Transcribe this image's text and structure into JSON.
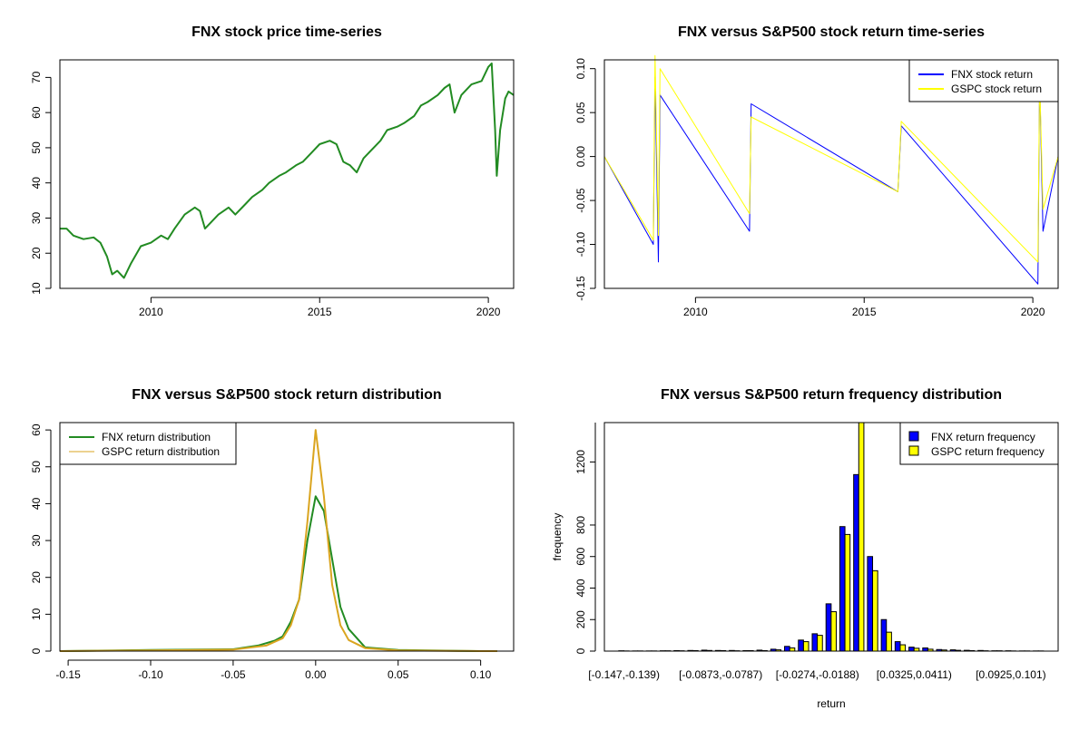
{
  "chart_data": [
    {
      "type": "line",
      "title": "FNX stock price time-series",
      "xlabel": "",
      "ylabel": "",
      "xlim": [
        2007.3,
        2020.75
      ],
      "ylim": [
        10,
        75
      ],
      "xticks": [
        2010,
        2015,
        2020
      ],
      "yticks": [
        10,
        20,
        30,
        40,
        50,
        60,
        70
      ],
      "series": [
        {
          "color": "#228b22",
          "x": [
            2007.3,
            2007.5,
            2007.7,
            2008.0,
            2008.3,
            2008.5,
            2008.7,
            2008.85,
            2009.0,
            2009.2,
            2009.4,
            2009.7,
            2010.0,
            2010.3,
            2010.5,
            2010.7,
            2011.0,
            2011.3,
            2011.45,
            2011.6,
            2011.8,
            2012.0,
            2012.3,
            2012.5,
            2012.8,
            2013.0,
            2013.3,
            2013.5,
            2013.8,
            2014.0,
            2014.3,
            2014.5,
            2014.8,
            2015.0,
            2015.3,
            2015.5,
            2015.7,
            2015.9,
            2016.1,
            2016.3,
            2016.5,
            2016.8,
            2017.0,
            2017.3,
            2017.5,
            2017.8,
            2018.0,
            2018.2,
            2018.5,
            2018.7,
            2018.85,
            2019.0,
            2019.2,
            2019.5,
            2019.8,
            2020.0,
            2020.1,
            2020.2,
            2020.25,
            2020.35,
            2020.5,
            2020.6,
            2020.75
          ],
          "y": [
            27,
            27,
            25,
            24,
            24.5,
            23,
            19,
            14,
            15,
            13,
            17,
            22,
            23,
            25,
            24,
            27,
            31,
            33,
            32,
            27,
            29,
            31,
            33,
            31,
            34,
            36,
            38,
            40,
            42,
            43,
            45,
            46,
            49,
            51,
            52,
            51,
            46,
            45,
            43,
            47,
            49,
            52,
            55,
            56,
            57,
            59,
            62,
            63,
            65,
            67,
            68,
            60,
            65,
            68,
            69,
            73,
            74,
            55,
            42,
            55,
            64,
            66,
            65
          ]
        }
      ]
    },
    {
      "type": "line",
      "title": "FNX versus S&P500 stock return time-series",
      "xlabel": "",
      "ylabel": "",
      "xlim": [
        2007.3,
        2020.75
      ],
      "ylim": [
        -0.15,
        0.11
      ],
      "xticks": [
        2010,
        2015,
        2020
      ],
      "yticks": [
        -0.15,
        -0.1,
        -0.05,
        0.0,
        0.05,
        0.1
      ],
      "legend_position": "top-right",
      "series": [
        {
          "name": "FNX stock return",
          "color": "#0000ff",
          "x": [
            2007.3,
            2008.75,
            2008.8,
            2008.9,
            2008.95,
            2011.6,
            2011.65,
            2016.0,
            2016.1,
            2020.15,
            2020.2,
            2020.3,
            2020.75
          ],
          "y": [
            0.0,
            -0.1,
            0.09,
            -0.12,
            0.07,
            -0.085,
            0.06,
            -0.04,
            0.035,
            -0.145,
            0.09,
            -0.085,
            0.0
          ]
        },
        {
          "name": "GSPC stock return",
          "color": "#ffff00",
          "x": [
            2007.3,
            2008.75,
            2008.8,
            2008.9,
            2008.95,
            2011.6,
            2011.65,
            2016.0,
            2016.1,
            2020.15,
            2020.2,
            2020.3,
            2020.75
          ],
          "y": [
            0.0,
            -0.095,
            0.115,
            -0.09,
            0.1,
            -0.065,
            0.045,
            -0.04,
            0.04,
            -0.12,
            0.09,
            -0.06,
            0.0
          ]
        }
      ]
    },
    {
      "type": "line",
      "title": "FNX versus S&P500 stock return distribution",
      "xlabel": "",
      "ylabel": "",
      "xlim": [
        -0.155,
        0.12
      ],
      "ylim": [
        0,
        62
      ],
      "xticks": [
        -0.15,
        -0.1,
        -0.05,
        0.0,
        0.05,
        0.1
      ],
      "yticks": [
        0,
        10,
        20,
        30,
        40,
        50,
        60
      ],
      "legend_position": "top-left",
      "series": [
        {
          "name": "FNX return distribution",
          "color": "#228b22",
          "x": [
            -0.155,
            -0.1,
            -0.05,
            -0.035,
            -0.025,
            -0.02,
            -0.015,
            -0.01,
            -0.005,
            0.0,
            0.005,
            0.01,
            0.015,
            0.02,
            0.03,
            0.05,
            0.1,
            0.11
          ],
          "y": [
            0,
            0.3,
            0.5,
            1.5,
            2.8,
            4,
            8,
            14,
            30,
            42,
            38,
            25,
            12,
            6,
            1,
            0.3,
            0,
            0
          ]
        },
        {
          "name": "GSPC return distribution",
          "color": "#daa520",
          "x": [
            -0.155,
            -0.1,
            -0.05,
            -0.03,
            -0.02,
            -0.015,
            -0.01,
            -0.005,
            0.0,
            0.005,
            0.01,
            0.015,
            0.02,
            0.03,
            0.05,
            0.1,
            0.11
          ],
          "y": [
            0,
            0.2,
            0.4,
            1.5,
            3.5,
            7,
            14,
            35,
            60,
            42,
            18,
            7,
            3,
            0.8,
            0.2,
            0,
            0
          ]
        }
      ]
    },
    {
      "type": "bar",
      "title": "FNX versus S&P500 return frequency distribution",
      "xlabel": "return",
      "ylabel": "frequency",
      "ylim": [
        0,
        1450
      ],
      "yticks": [
        0,
        200,
        400,
        600,
        800,
        1200
      ],
      "legend_position": "top-right",
      "tick_labels": [
        "[-0.147,-0.139)",
        "[-0.0873,-0.0787)",
        "[-0.0274,-0.0188)",
        "[0.0325,0.0411)",
        "[0.0925,0.101)"
      ],
      "tick_label_bins": [
        0,
        7,
        14,
        21,
        28
      ],
      "categories": [
        "b1",
        "b2",
        "b3",
        "b4",
        "b5",
        "b6",
        "b7",
        "b8",
        "b9",
        "b10",
        "b11",
        "b12",
        "b13",
        "b14",
        "b15",
        "b16",
        "b17",
        "b18",
        "b19",
        "b20",
        "b21",
        "b22",
        "b23",
        "b24",
        "b25",
        "b26",
        "b27",
        "b28",
        "b29",
        "b30",
        "b31"
      ],
      "series": [
        {
          "name": "FNX return frequency",
          "color": "#0000ff",
          "values": [
            2,
            1,
            1,
            2,
            3,
            4,
            6,
            4,
            4,
            3,
            6,
            12,
            30,
            70,
            110,
            300,
            790,
            1120,
            600,
            200,
            60,
            25,
            20,
            10,
            8,
            5,
            4,
            2,
            2,
            1,
            1
          ]
        },
        {
          "name": "GSPC return frequency",
          "color": "#ffff00",
          "values": [
            1,
            1,
            1,
            2,
            2,
            3,
            4,
            3,
            2,
            3,
            3,
            8,
            20,
            60,
            100,
            250,
            740,
            1450,
            510,
            120,
            40,
            18,
            12,
            7,
            5,
            3,
            2,
            2,
            1,
            1,
            1
          ]
        }
      ]
    }
  ]
}
